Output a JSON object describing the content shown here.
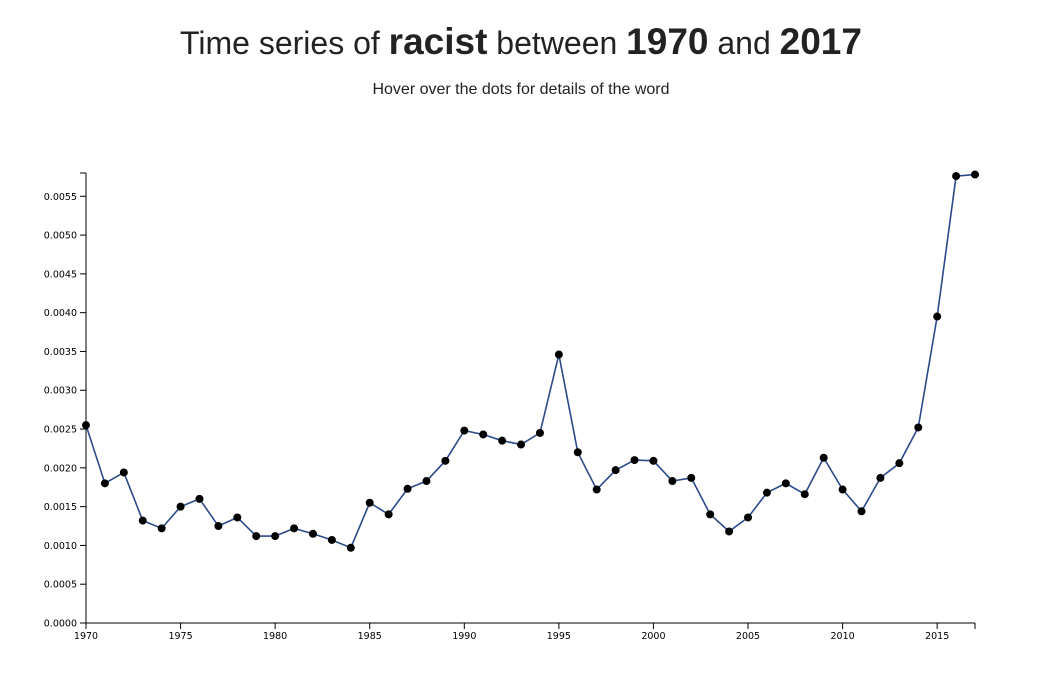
{
  "header": {
    "title_prefix": "Time series of",
    "word": "racist",
    "title_mid": "between",
    "start_year": "1970",
    "title_and": "and",
    "end_year": "2017",
    "subtitle": "Hover over the dots for details of the word"
  },
  "colors": {
    "line": "#2b4a8b",
    "dot": "#000000",
    "axis": "#000000",
    "text": "#222222"
  },
  "chart_data": {
    "type": "line",
    "title": "Time series of racist between 1970 and 2017",
    "subtitle": "Hover over the dots for details of the word",
    "xlabel": "",
    "ylabel": "",
    "xlim": [
      1970,
      2017
    ],
    "ylim": [
      0,
      0.0058
    ],
    "grid": false,
    "x_ticks": [
      "1970",
      "1975",
      "1980",
      "1985",
      "1990",
      "1995",
      "2000",
      "2005",
      "2010",
      "2015"
    ],
    "x_tick_values": [
      1970,
      1975,
      1980,
      1985,
      1990,
      1995,
      2000,
      2005,
      2010,
      2015
    ],
    "y_ticks": [
      "0.0000",
      "0.0005",
      "0.0010",
      "0.0015",
      "0.0020",
      "0.0025",
      "0.0030",
      "0.0035",
      "0.0040",
      "0.0045",
      "0.0050",
      "0.0055"
    ],
    "y_tick_values": [
      0,
      0.0005,
      0.001,
      0.0015,
      0.002,
      0.0025,
      0.003,
      0.0035,
      0.004,
      0.0045,
      0.005,
      0.0055
    ],
    "x": [
      1970,
      1971,
      1972,
      1973,
      1974,
      1975,
      1976,
      1977,
      1978,
      1979,
      1980,
      1981,
      1982,
      1983,
      1984,
      1985,
      1986,
      1987,
      1988,
      1989,
      1990,
      1991,
      1992,
      1993,
      1994,
      1995,
      1996,
      1997,
      1998,
      1999,
      2000,
      2001,
      2002,
      2003,
      2004,
      2005,
      2006,
      2007,
      2008,
      2009,
      2010,
      2011,
      2012,
      2013,
      2014,
      2015,
      2016,
      2017
    ],
    "y": [
      0.00255,
      0.0018,
      0.00194,
      0.00132,
      0.00122,
      0.0015,
      0.0016,
      0.00125,
      0.00136,
      0.00112,
      0.00112,
      0.00122,
      0.00115,
      0.00107,
      0.00097,
      0.00155,
      0.0014,
      0.00173,
      0.00183,
      0.00209,
      0.00248,
      0.00243,
      0.00235,
      0.0023,
      0.00245,
      0.00346,
      0.0022,
      0.00172,
      0.00197,
      0.0021,
      0.00209,
      0.00183,
      0.00187,
      0.0014,
      0.00118,
      0.00136,
      0.00168,
      0.0018,
      0.00166,
      0.00213,
      0.00172,
      0.00144,
      0.00187,
      0.00206,
      0.00252,
      0.00395,
      0.00576,
      0.00578
    ]
  }
}
